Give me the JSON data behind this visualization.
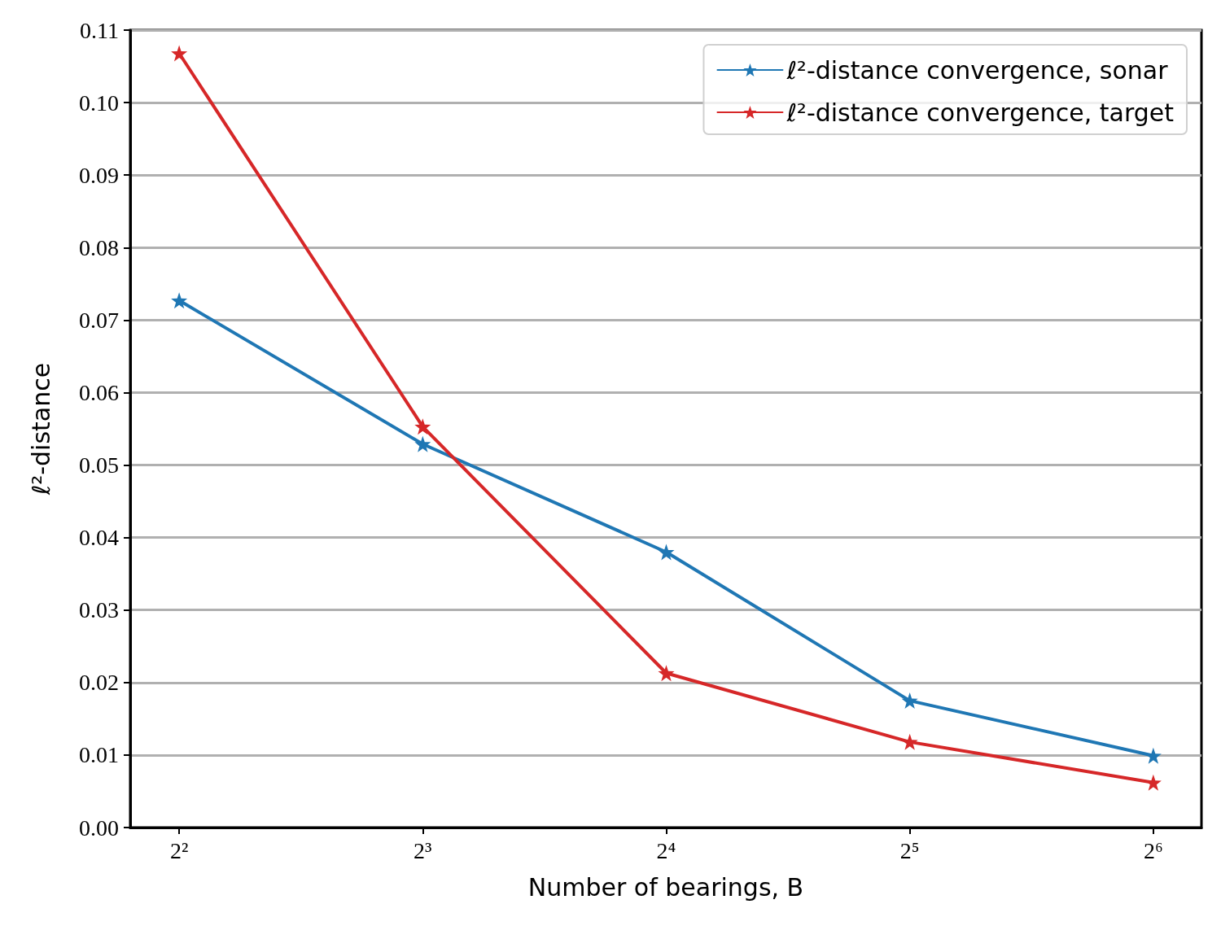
{
  "chart_data": {
    "type": "line",
    "xlabel": "Number of bearings, B",
    "ylabel": "ℓ²-distance",
    "x": [
      4,
      8,
      16,
      32,
      64
    ],
    "series": [
      {
        "name": "ℓ²-distance convergence, sonar",
        "color": "#1f77b4",
        "values": [
          0.0727,
          0.0529,
          0.038,
          0.0175,
          0.0099
        ]
      },
      {
        "name": "ℓ²-distance convergence, target",
        "color": "#d62728",
        "values": [
          0.1068,
          0.0553,
          0.0213,
          0.0118,
          0.0062
        ]
      }
    ],
    "log": "x",
    "xlim": [
      3.48,
      73.4
    ],
    "xticks": [
      {
        "value": 4,
        "label": "2²"
      },
      {
        "value": 8,
        "label": "2³"
      },
      {
        "value": 16,
        "label": "2⁴"
      },
      {
        "value": 32,
        "label": "2⁵"
      },
      {
        "value": 64,
        "label": "2⁶"
      }
    ],
    "ylim": [
      0,
      0.11
    ],
    "yticks": [
      {
        "value": 0,
        "label": "0.00"
      },
      {
        "value": 0.01,
        "label": "0.01"
      },
      {
        "value": 0.02,
        "label": "0.02"
      },
      {
        "value": 0.03,
        "label": "0.03"
      },
      {
        "value": 0.04,
        "label": "0.04"
      },
      {
        "value": 0.05,
        "label": "0.05"
      },
      {
        "value": 0.06,
        "label": "0.06"
      },
      {
        "value": 0.07,
        "label": "0.07"
      },
      {
        "value": 0.08,
        "label": "0.08"
      },
      {
        "value": 0.09,
        "label": "0.09"
      },
      {
        "value": 0.1,
        "label": "0.10"
      },
      {
        "value": 0.11,
        "label": "0.11"
      }
    ],
    "grid": "y",
    "legend": "top right",
    "marker": "star",
    "line_style": "solid"
  }
}
